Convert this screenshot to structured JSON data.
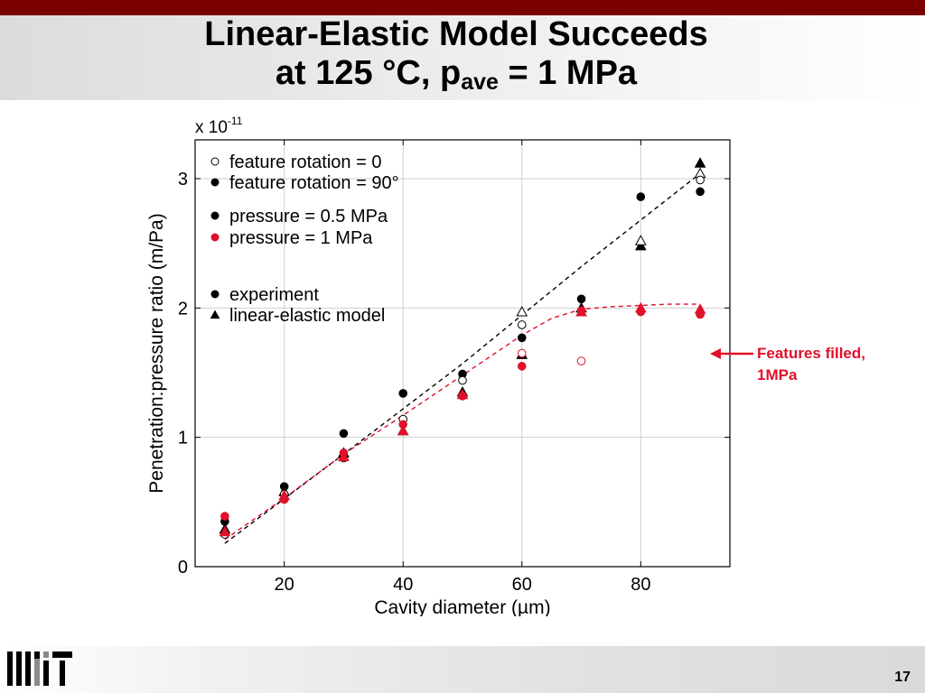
{
  "slide": {
    "title_line1": "Linear-Elastic Model Succeeds",
    "title_line2_prefix": "at 125 °C, p",
    "title_line2_sub": "ave",
    "title_line2_suffix": " = 1 MPa",
    "annotation_line1": "Features filled,",
    "annotation_line2": "1MPa",
    "page_number": "17",
    "accent_color": "#7a0000",
    "annotation_color": "#e0102a"
  },
  "chart_data": {
    "type": "scatter",
    "xlabel": "Cavity diameter (µm)",
    "ylabel": "Penetration:pressure ratio (m/Pa)",
    "exponent_label": "x 10",
    "exponent_power": "-11",
    "xlim": [
      5,
      95
    ],
    "ylim": [
      0,
      3.3
    ],
    "xticks": [
      20,
      40,
      60,
      80
    ],
    "yticks": [
      0,
      1,
      2,
      3
    ],
    "grid": true,
    "legend_position": "top-left",
    "legend": [
      {
        "label": "feature rotation = 0",
        "marker": "circle-open",
        "color": "#000000"
      },
      {
        "label": "feature rotation = 90°",
        "marker": "circle-filled",
        "color": "#000000"
      },
      {
        "label": "pressure = 0.5 MPa",
        "marker": "circle-filled",
        "color": "#000000"
      },
      {
        "label": "pressure = 1 MPa",
        "marker": "circle-filled",
        "color": "#e0102a"
      },
      {
        "label": "experiment",
        "marker": "circle-filled",
        "color": "#000000"
      },
      {
        "label": "linear-elastic model",
        "marker": "triangle-filled",
        "color": "#000000"
      }
    ],
    "points": [
      {
        "x": 10,
        "y": 0.35,
        "marker": "circle",
        "fill": true,
        "color": "#000000"
      },
      {
        "x": 10,
        "y": 0.29,
        "marker": "triangle",
        "fill": true,
        "color": "#000000"
      },
      {
        "x": 10,
        "y": 0.25,
        "marker": "circle",
        "fill": false,
        "color": "#000000"
      },
      {
        "x": 10,
        "y": 0.39,
        "marker": "circle",
        "fill": true,
        "color": "#e0102a"
      },
      {
        "x": 10,
        "y": 0.27,
        "marker": "triangle",
        "fill": true,
        "color": "#e0102a"
      },
      {
        "x": 20,
        "y": 0.62,
        "marker": "circle",
        "fill": true,
        "color": "#000000"
      },
      {
        "x": 20,
        "y": 0.58,
        "marker": "triangle",
        "fill": true,
        "color": "#000000"
      },
      {
        "x": 20,
        "y": 0.56,
        "marker": "circle",
        "fill": false,
        "color": "#000000"
      },
      {
        "x": 20,
        "y": 0.52,
        "marker": "circle",
        "fill": true,
        "color": "#e0102a"
      },
      {
        "x": 20,
        "y": 0.55,
        "marker": "triangle",
        "fill": true,
        "color": "#e0102a"
      },
      {
        "x": 30,
        "y": 1.03,
        "marker": "circle",
        "fill": true,
        "color": "#000000"
      },
      {
        "x": 30,
        "y": 0.88,
        "marker": "triangle",
        "fill": true,
        "color": "#000000"
      },
      {
        "x": 30,
        "y": 0.84,
        "marker": "circle",
        "fill": false,
        "color": "#000000"
      },
      {
        "x": 30,
        "y": 0.88,
        "marker": "circle",
        "fill": true,
        "color": "#e0102a"
      },
      {
        "x": 30,
        "y": 0.85,
        "marker": "triangle",
        "fill": true,
        "color": "#e0102a"
      },
      {
        "x": 40,
        "y": 1.34,
        "marker": "circle",
        "fill": true,
        "color": "#000000"
      },
      {
        "x": 40,
        "y": 1.05,
        "marker": "triangle",
        "fill": true,
        "color": "#000000"
      },
      {
        "x": 40,
        "y": 1.14,
        "marker": "circle",
        "fill": false,
        "color": "#000000"
      },
      {
        "x": 40,
        "y": 1.1,
        "marker": "circle",
        "fill": true,
        "color": "#e0102a"
      },
      {
        "x": 40,
        "y": 1.05,
        "marker": "triangle",
        "fill": true,
        "color": "#e0102a"
      },
      {
        "x": 50,
        "y": 1.49,
        "marker": "circle",
        "fill": true,
        "color": "#000000"
      },
      {
        "x": 50,
        "y": 1.35,
        "marker": "triangle",
        "fill": true,
        "color": "#000000"
      },
      {
        "x": 50,
        "y": 1.44,
        "marker": "circle",
        "fill": false,
        "color": "#000000"
      },
      {
        "x": 50,
        "y": 1.32,
        "marker": "circle",
        "fill": true,
        "color": "#e0102a"
      },
      {
        "x": 50,
        "y": 1.33,
        "marker": "triangle",
        "fill": true,
        "color": "#e0102a"
      },
      {
        "x": 60,
        "y": 1.77,
        "marker": "circle",
        "fill": true,
        "color": "#000000"
      },
      {
        "x": 60,
        "y": 1.64,
        "marker": "triangle",
        "fill": true,
        "color": "#000000"
      },
      {
        "x": 60,
        "y": 1.87,
        "marker": "circle",
        "fill": false,
        "color": "#000000"
      },
      {
        "x": 60,
        "y": 1.97,
        "marker": "triangle",
        "fill": false,
        "color": "#000000"
      },
      {
        "x": 60,
        "y": 1.55,
        "marker": "circle",
        "fill": true,
        "color": "#e0102a"
      },
      {
        "x": 60,
        "y": 1.65,
        "marker": "circle",
        "fill": false,
        "color": "#e0102a"
      },
      {
        "x": 70,
        "y": 2.07,
        "marker": "circle",
        "fill": true,
        "color": "#000000"
      },
      {
        "x": 70,
        "y": 2.0,
        "marker": "triangle",
        "fill": true,
        "color": "#000000"
      },
      {
        "x": 70,
        "y": 1.98,
        "marker": "circle",
        "fill": true,
        "color": "#e0102a"
      },
      {
        "x": 70,
        "y": 1.97,
        "marker": "triangle",
        "fill": true,
        "color": "#e0102a"
      },
      {
        "x": 70,
        "y": 1.59,
        "marker": "circle",
        "fill": false,
        "color": "#e0102a"
      },
      {
        "x": 80,
        "y": 2.86,
        "marker": "circle",
        "fill": true,
        "color": "#000000"
      },
      {
        "x": 80,
        "y": 2.48,
        "marker": "triangle",
        "fill": true,
        "color": "#000000"
      },
      {
        "x": 80,
        "y": 2.52,
        "marker": "triangle",
        "fill": false,
        "color": "#000000"
      },
      {
        "x": 80,
        "y": 1.97,
        "marker": "circle",
        "fill": true,
        "color": "#e0102a"
      },
      {
        "x": 80,
        "y": 2.0,
        "marker": "triangle",
        "fill": true,
        "color": "#e0102a"
      },
      {
        "x": 90,
        "y": 2.9,
        "marker": "circle",
        "fill": true,
        "color": "#000000"
      },
      {
        "x": 90,
        "y": 3.12,
        "marker": "triangle",
        "fill": true,
        "color": "#000000"
      },
      {
        "x": 90,
        "y": 3.04,
        "marker": "triangle",
        "fill": false,
        "color": "#000000"
      },
      {
        "x": 90,
        "y": 2.99,
        "marker": "circle",
        "fill": false,
        "color": "#000000"
      },
      {
        "x": 90,
        "y": 1.95,
        "marker": "circle",
        "fill": true,
        "color": "#e0102a"
      },
      {
        "x": 90,
        "y": 1.99,
        "marker": "triangle",
        "fill": true,
        "color": "#e0102a"
      }
    ],
    "fit_lines": [
      {
        "style": "dashed",
        "color": "#000000",
        "points": [
          [
            10,
            0.18
          ],
          [
            30,
            0.87
          ],
          [
            50,
            1.57
          ],
          [
            70,
            2.32
          ],
          [
            90,
            3.04
          ]
        ]
      },
      {
        "style": "dashed",
        "color": "#e0102a",
        "points": [
          [
            10,
            0.21
          ],
          [
            20,
            0.53
          ],
          [
            30,
            0.87
          ],
          [
            40,
            1.17
          ],
          [
            50,
            1.48
          ],
          [
            60,
            1.79
          ],
          [
            65,
            1.92
          ],
          [
            70,
            1.99
          ],
          [
            75,
            2.01
          ],
          [
            80,
            2.02
          ],
          [
            85,
            2.03
          ],
          [
            90,
            2.03
          ]
        ]
      }
    ]
  }
}
